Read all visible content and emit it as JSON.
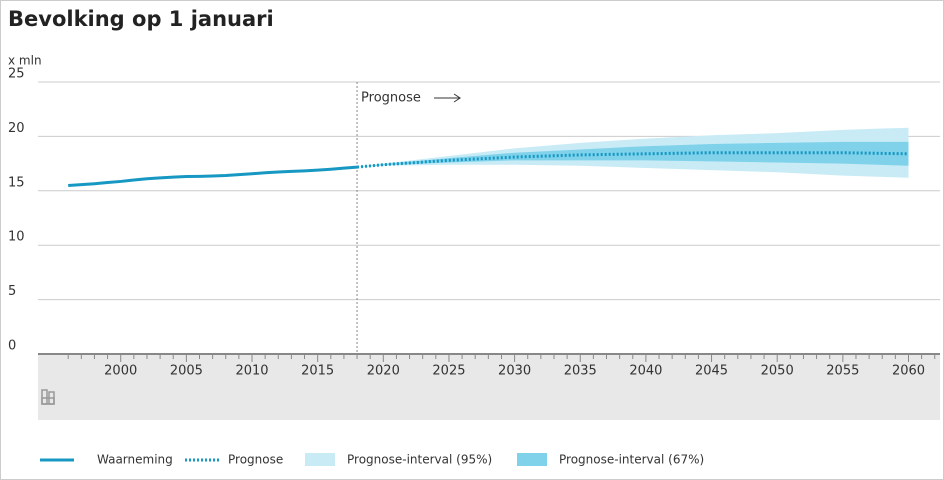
{
  "chart_data": {
    "type": "line",
    "title": "Bevolking op 1 januari",
    "y_label": "x mln",
    "annotation": "Prognose",
    "forecast_start": 2018,
    "xlim": [
      1993.7,
      2062.4
    ],
    "xticks": [
      2000,
      2005,
      2010,
      2015,
      2020,
      2025,
      2030,
      2035,
      2040,
      2045,
      2050,
      2055,
      2060
    ],
    "ylim": [
      0,
      25
    ],
    "yticks": [
      0,
      5,
      10,
      15,
      20,
      25
    ],
    "grid": true,
    "series": [
      {
        "name": "Waarneming",
        "color": "#1798c3",
        "style": "solid",
        "x": [
          1996,
          1997,
          1998,
          1999,
          2000,
          2001,
          2002,
          2003,
          2004,
          2005,
          2006,
          2007,
          2008,
          2009,
          2010,
          2011,
          2012,
          2013,
          2014,
          2015,
          2016,
          2017,
          2018
        ],
        "values": [
          15.49,
          15.57,
          15.65,
          15.76,
          15.86,
          15.99,
          16.11,
          16.19,
          16.26,
          16.31,
          16.33,
          16.36,
          16.41,
          16.49,
          16.57,
          16.66,
          16.73,
          16.78,
          16.83,
          16.9,
          16.98,
          17.08,
          17.18
        ]
      },
      {
        "name": "Prognose",
        "color": "#1798c3",
        "style": "dotted",
        "x": [
          2018,
          2020,
          2025,
          2030,
          2035,
          2040,
          2045,
          2050,
          2055,
          2060
        ],
        "values": [
          17.18,
          17.4,
          17.8,
          18.1,
          18.3,
          18.4,
          18.5,
          18.5,
          18.5,
          18.4
        ]
      }
    ],
    "bands": [
      {
        "name": "Prognose-interval (95%)",
        "color": "#c8ebf6",
        "x": [
          2018,
          2020,
          2025,
          2030,
          2035,
          2040,
          2045,
          2050,
          2055,
          2060
        ],
        "lower": [
          17.18,
          17.3,
          17.4,
          17.4,
          17.3,
          17.1,
          16.9,
          16.7,
          16.4,
          16.2
        ],
        "upper": [
          17.18,
          17.5,
          18.2,
          18.9,
          19.4,
          19.8,
          20.1,
          20.3,
          20.6,
          20.8
        ]
      },
      {
        "name": "Prognose-interval (67%)",
        "color": "#7fd2ea",
        "x": [
          2018,
          2020,
          2025,
          2030,
          2035,
          2040,
          2045,
          2050,
          2055,
          2060
        ],
        "lower": [
          17.18,
          17.35,
          17.6,
          17.8,
          17.8,
          17.8,
          17.7,
          17.6,
          17.5,
          17.3
        ],
        "upper": [
          17.18,
          17.45,
          18.0,
          18.5,
          18.8,
          19.1,
          19.3,
          19.4,
          19.5,
          19.5
        ]
      }
    ]
  }
}
